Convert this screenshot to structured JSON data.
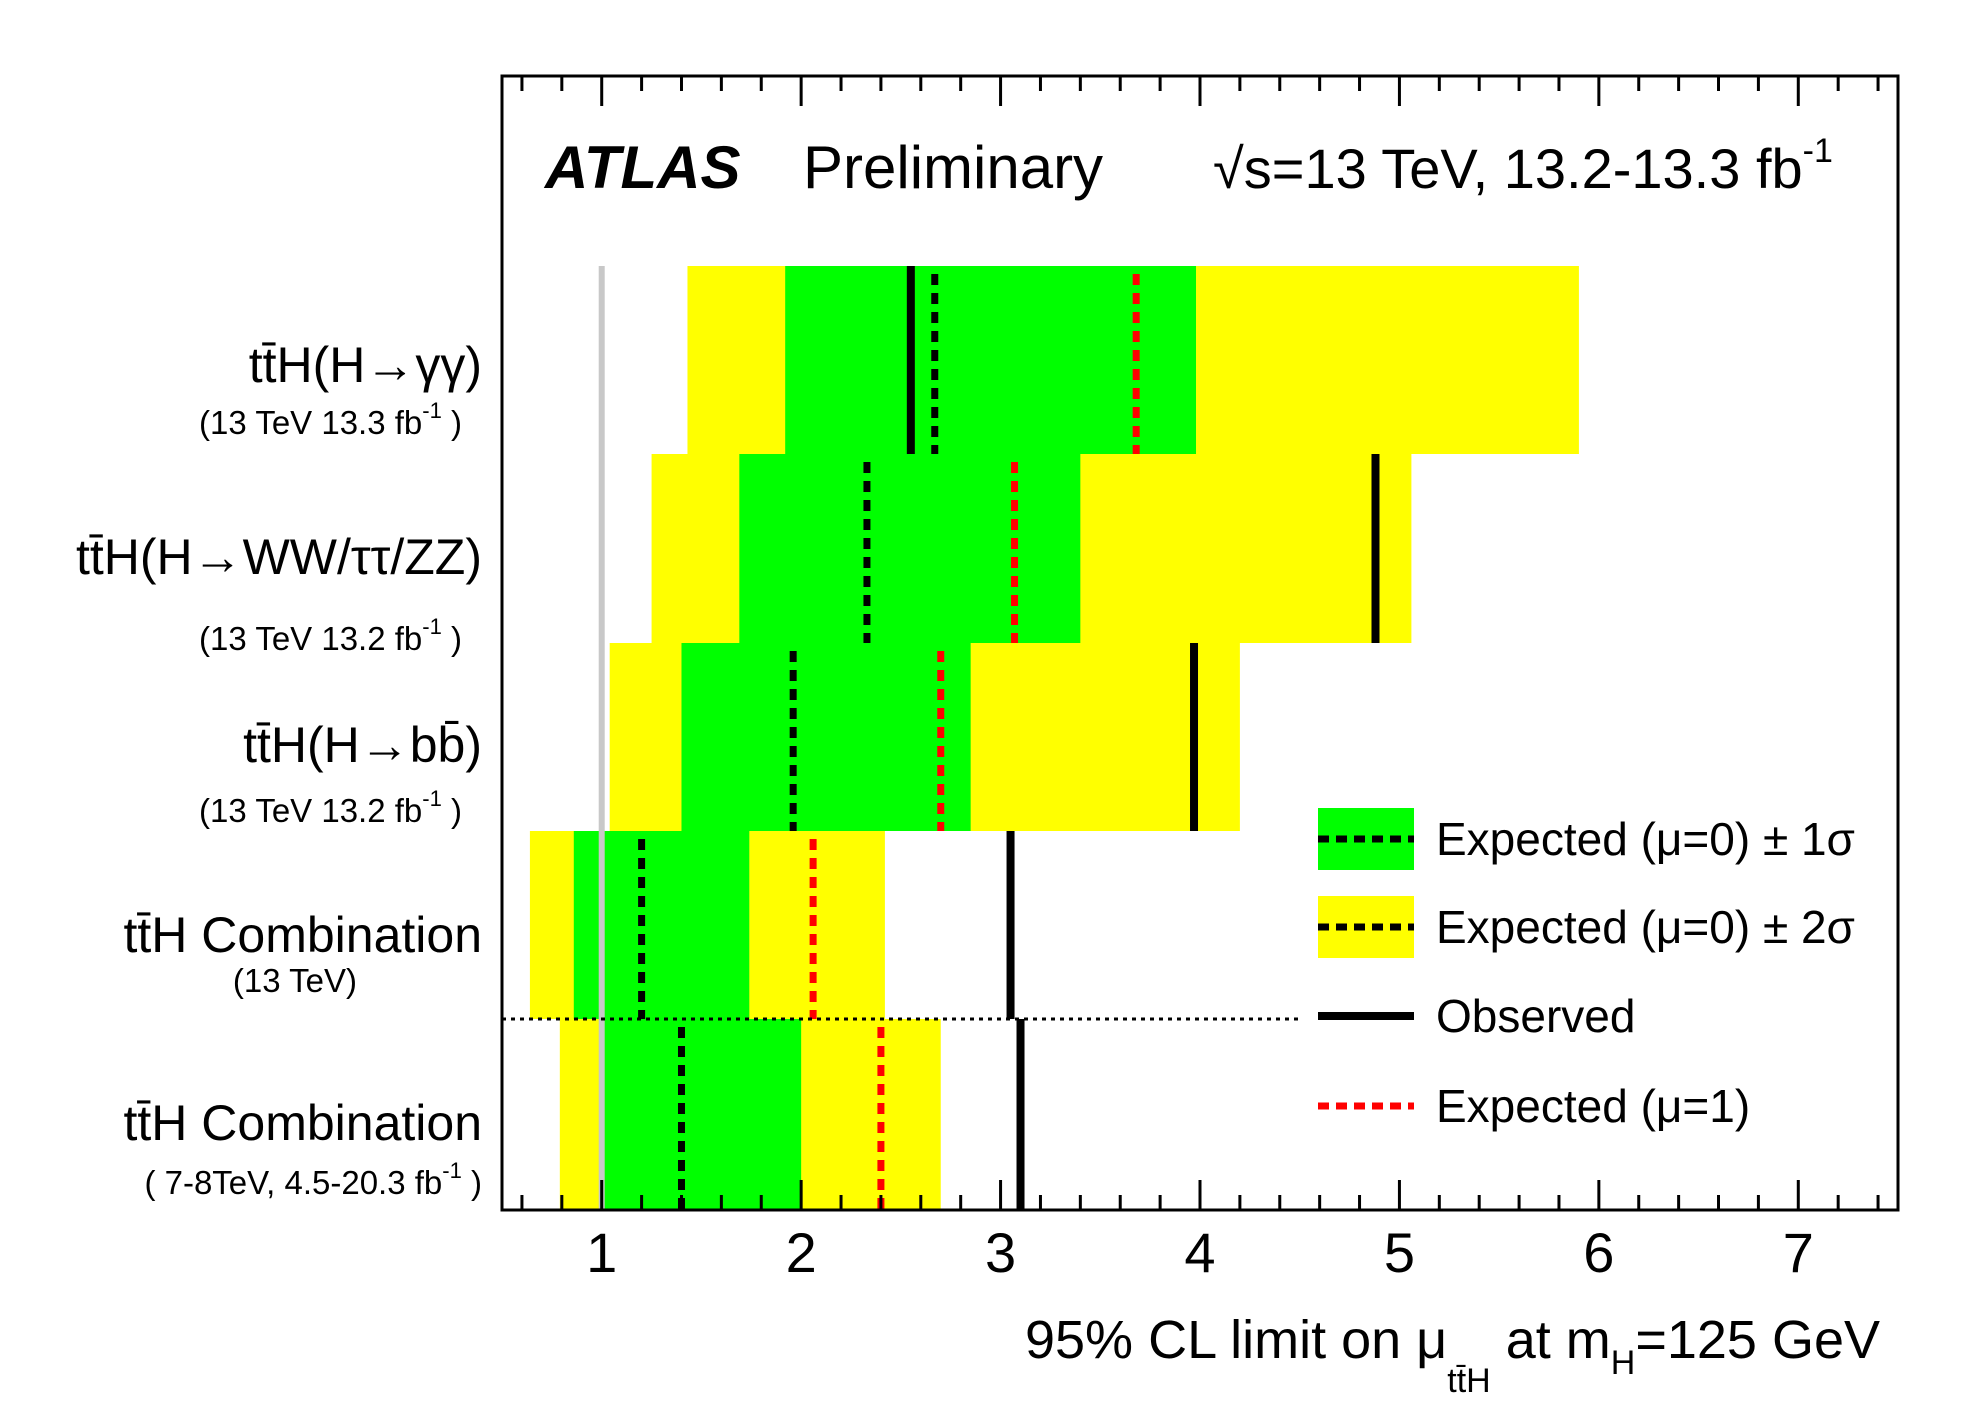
{
  "header": {
    "experiment": "ATLAS",
    "status": "Preliminary",
    "energy": "√s=13 TeV, 13.2-13.3 fb",
    "energy_sup": "-1"
  },
  "categories": [
    {
      "label": "tt̄H(H→γγ)",
      "sub": "(13 TeV 13.3 fb",
      "sub_sup": "-1",
      "sub_end": " )"
    },
    {
      "label": "tt̄H(H→WW/ττ/ZZ)",
      "sub": "(13 TeV 13.2 fb",
      "sub_sup": "-1",
      "sub_end": " )"
    },
    {
      "label": "tt̄H(H→bb̄)",
      "sub": "(13 TeV 13.2 fb",
      "sub_sup": "-1",
      "sub_end": " )"
    },
    {
      "label": "tt̄H Combination",
      "sub": "(13 TeV)",
      "sub_sup": "",
      "sub_end": ""
    },
    {
      "label": "tt̄H Combination",
      "sub": "( 7-8TeV, 4.5-20.3 fb",
      "sub_sup": "-1",
      "sub_end": " )"
    }
  ],
  "x_axis": {
    "title_pre": "95% CL limit on μ",
    "title_sub": "tt̄H",
    "title_mid": " at m",
    "title_sub2": "H",
    "title_post": "=125 GeV"
  },
  "legend": {
    "one_sigma": "Expected (μ=0) ± 1σ",
    "two_sigma": "Expected (μ=0) ± 2σ",
    "observed": "Observed",
    "expected_mu1": "Expected (μ=1)"
  },
  "colors": {
    "one_sigma": "#00ff00",
    "two_sigma": "#ffff00",
    "observed": "#000000",
    "expected_mu0": "#000000",
    "expected_mu1": "#ff0000",
    "sm_line": "#c8c8c8"
  },
  "chart_data": {
    "type": "limit-plot",
    "xlim": [
      0.5,
      7.5
    ],
    "xticks": [
      1,
      2,
      3,
      4,
      5,
      6,
      7
    ],
    "sm_reference": 1.0,
    "rows": [
      {
        "name": "ttH(H→γγ)",
        "observed": 2.55,
        "expected_mu0": 2.67,
        "expected_mu1": 3.68,
        "sigma1": [
          1.92,
          3.98
        ],
        "sigma2": [
          1.43,
          5.9
        ]
      },
      {
        "name": "ttH(H→WW/ττ/ZZ)",
        "observed": 4.88,
        "expected_mu0": 2.33,
        "expected_mu1": 3.07,
        "sigma1": [
          1.69,
          3.4
        ],
        "sigma2": [
          1.25,
          5.06
        ]
      },
      {
        "name": "ttH(H→bb)",
        "observed": 3.97,
        "expected_mu0": 1.96,
        "expected_mu1": 2.7,
        "sigma1": [
          1.4,
          2.85
        ],
        "sigma2": [
          1.04,
          4.2
        ]
      },
      {
        "name": "ttH Combination (13 TeV)",
        "observed": 3.05,
        "expected_mu0": 1.2,
        "expected_mu1": 2.06,
        "sigma1": [
          0.86,
          1.74
        ],
        "sigma2": [
          0.64,
          2.42
        ]
      },
      {
        "name": "ttH Combination (7-8TeV)",
        "observed": 3.1,
        "expected_mu0": 1.4,
        "expected_mu1": 2.4,
        "sigma1": [
          1.0,
          2.0
        ],
        "sigma2": [
          0.79,
          2.7
        ]
      }
    ]
  }
}
